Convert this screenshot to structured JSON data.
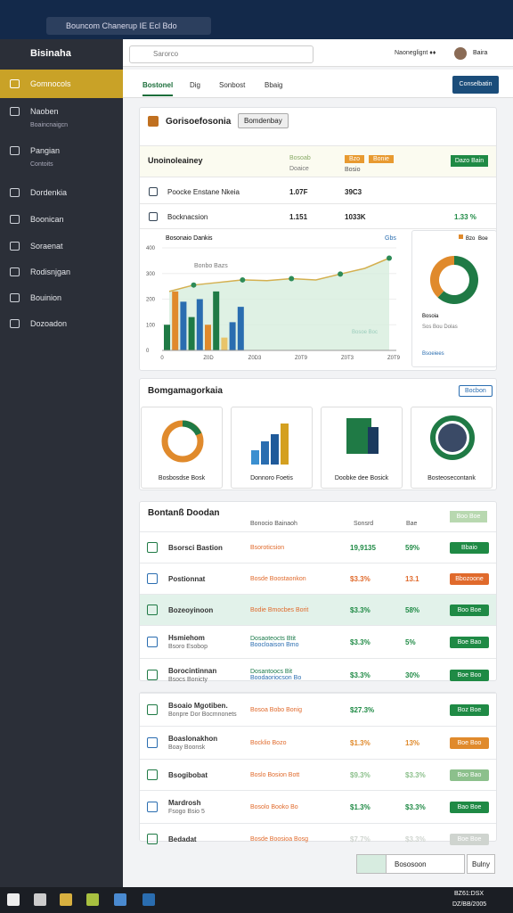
{
  "browser": {
    "tab_title": "Bouncom Chanerup IE Ecl Bdo"
  },
  "sidebar": {
    "brand": "Bisinaha",
    "items": [
      {
        "label": "Gomnocols"
      },
      {
        "label": "Naoben",
        "sub": "Boaincnaigcn"
      },
      {
        "label": "Pangian",
        "sub": "Contoits"
      },
      {
        "label": "Dordenkia"
      },
      {
        "label": "Boonican"
      },
      {
        "label": "Soraenat"
      },
      {
        "label": "Rodisnjgan"
      },
      {
        "label": "Bouinion"
      },
      {
        "label": "Dozoadon"
      }
    ]
  },
  "topbar": {
    "search": "Sarorco",
    "menu": "Naoneglignt ♦♦",
    "user": "Baira"
  },
  "tabs": [
    "Bostonel",
    "Dig",
    "Sonbost",
    "Bbaig"
  ],
  "action_button": "Conselbatin",
  "summary": {
    "title": "Gorisoefosonia",
    "badge": "Bomdenbay",
    "header": {
      "label": "Unoinoleainey",
      "col": "Bosoab",
      "col_sub": "Doaice",
      "tag1": "Bzo",
      "tag2": "Bonie",
      "tag_sub": "Bosio",
      "button": "Dazo Bain"
    },
    "rows": [
      {
        "label": "Poocke Enstane Nkeia",
        "a": "1.07F",
        "b": "39C3"
      },
      {
        "label": "Bocknacsion",
        "a": "1.151",
        "b": "1033K",
        "c": "1.33 %"
      }
    ]
  },
  "overview_chart": {
    "title": "Bosonaio Dankis",
    "legend": "Gbs",
    "note": "Bonbo Bazs",
    "watermark": "Bosoe Boc",
    "ylim": [
      0,
      400
    ],
    "yticks": [
      0,
      100,
      200,
      300,
      400
    ],
    "xlabels": [
      "0",
      "Z0D",
      "Z0D3",
      "Z0T9",
      "Z0T3",
      "Z0T9"
    ],
    "bars": [
      {
        "value": 100,
        "color": "#1f7a45"
      },
      {
        "value": 230,
        "color": "#e08a2c"
      },
      {
        "value": 190,
        "color": "#2a6db0"
      },
      {
        "value": 130,
        "color": "#1f7a45"
      },
      {
        "value": 200,
        "color": "#2a6db0"
      },
      {
        "value": 100,
        "color": "#e08a2c"
      },
      {
        "value": 230,
        "color": "#1f7a45"
      },
      {
        "value": 50,
        "color": "#e8c46a"
      },
      {
        "value": 110,
        "color": "#2a6db0"
      },
      {
        "value": 170,
        "color": "#2a6db0"
      }
    ],
    "line": [
      230,
      255,
      265,
      275,
      272,
      280,
      275,
      298,
      320,
      360
    ],
    "line_color": "#2e8b57"
  },
  "donut": {
    "legend": "Bzo",
    "legend2": "Boe",
    "values": [
      62,
      38
    ],
    "colors": [
      "#1f7a45",
      "#e08a2c"
    ],
    "label": "Bosoia",
    "label2": "Sos Bou Dolas",
    "link": "Bsoeiees"
  },
  "section": {
    "title": "Bomgamagorkaia",
    "button": "Bocbon",
    "cards": [
      "Bosbosdse Bosk",
      "Donnoro Foetis",
      "Doobke dee Bosick",
      "Bosteosecontank"
    ]
  },
  "table": {
    "title": "Bontanß Doodan",
    "headers": [
      "Bonocio Bainaoh",
      "Sonsrd",
      "Bae"
    ],
    "header_button": "Boo Boe",
    "rows": [
      {
        "name": "Bsorsci Bastion",
        "mid": "Bsoroticsion",
        "value": "19,9135",
        "pct": "59%",
        "status": "Bbaio",
        "tone": "#1f8a45"
      },
      {
        "name": "Postionnat",
        "mid": "Bosde Boostaonkon",
        "value": "$3.3%",
        "pct": "13.1",
        "status": "Bbozoone",
        "tone": "#e06a2c"
      },
      {
        "name": "Bozeoyinoon",
        "mid": "Bodie Bmocbes Borit",
        "value": "$3.3%",
        "pct": "58%",
        "status": "Boo Boe",
        "tone": "#1f8a45"
      },
      {
        "name": "Hsmiehom",
        "sub": "Bsoro Esobop",
        "mid": "Boocloaison Bmo",
        "mid2": "Dosaoteocts Btit",
        "value": "$3.3%",
        "pct": "5%",
        "status": "Boe Bao",
        "tone": "#1f8a45"
      },
      {
        "name": "Borocintinnan",
        "sub": "Bsocs Bonicty",
        "mid": "Boodaoriocson Bo",
        "mid2": "Dosantoocs Bit",
        "value": "$3.3%",
        "pct": "30%",
        "status": "Boe Boo",
        "tone": "#1f8a45"
      }
    ],
    "rows2": [
      {
        "name": "Bsoaio Mgotiben.",
        "sub": "Bonpre Dor Bocmnonets",
        "mid": "Bosoa Bobo Bonig",
        "value": "$27.3%",
        "status": "Boz Boe",
        "tone": "#1f8a45"
      },
      {
        "name": "Boaslonakhon",
        "sub": "Boay Boonsk",
        "mid": "Bocklio Bozo",
        "value": "$1.3%",
        "pct": "13%",
        "status": "Boe Boo",
        "tone": "#e08a2c"
      },
      {
        "name": "Bsogibobat",
        "mid": "Boslo Bosion Bott",
        "value": "$9.3%",
        "pct": "$3.3%",
        "status": "Boo Bao",
        "tone": "#8cc08c"
      },
      {
        "name": "Mardrosh",
        "sub": "Fsogo Bsio 5",
        "mid": "Bosolo Booko Bo",
        "value": "$1.3%",
        "pct": "$3.3%",
        "status": "Bao Boe",
        "tone": "#1f8a45"
      },
      {
        "name": "Bedadat",
        "mid": "Bosde Boosioa Bosg",
        "value": "$7.7%",
        "pct": "$3.3%",
        "status": "Boe Boe",
        "tone": "#cfd4cf"
      }
    ]
  },
  "pagination": {
    "current": "Bososoon",
    "next": "Bulny"
  },
  "taskbar": {
    "time": "BZ61:DSX",
    "date": "DZ/BB/2005"
  }
}
